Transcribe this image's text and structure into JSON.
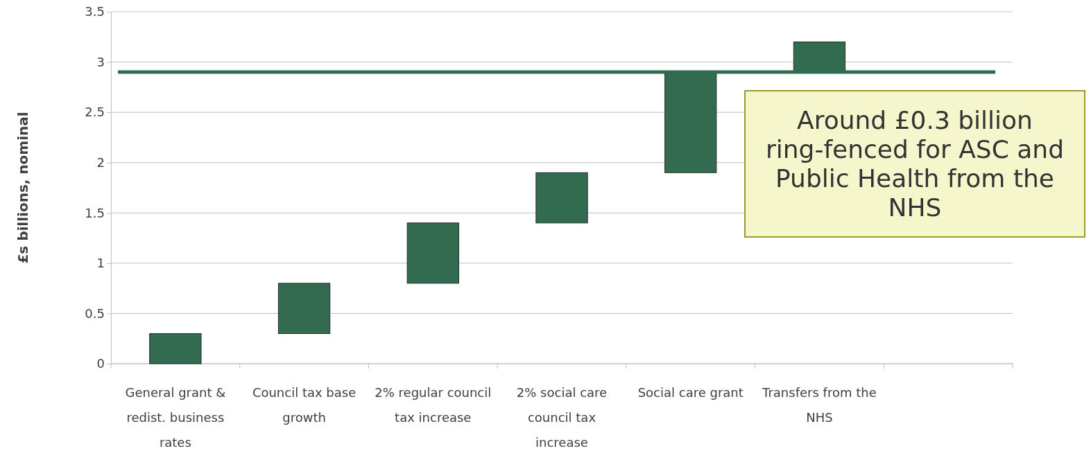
{
  "chart_data": {
    "type": "bar",
    "ylabel": "£s billions, nominal",
    "categories": [
      "General grant & redist. business rates",
      "Council tax base growth",
      "2% regular council tax increase",
      "2% social care council tax increase",
      "Social care grant",
      "Transfers from the NHS",
      null
    ],
    "values": [
      0.3,
      0.5,
      0.6,
      0.5,
      1.0,
      0.3,
      null
    ],
    "base": [
      0,
      0.3,
      0.8,
      1.4,
      1.9,
      2.9,
      null
    ],
    "color": "#336b51",
    "ylim": [
      0,
      3.5
    ],
    "yticks": [
      0,
      0.5,
      1,
      1.5,
      2,
      2.5,
      3,
      3.5
    ],
    "grid": "y",
    "ref_lines": [
      {
        "axis": "y",
        "value": 2.9,
        "color": "#2e6b50"
      }
    ],
    "annotations": [
      "Around £0.3 billion ring-fenced for ASC and Public Health from the NHS"
    ]
  }
}
